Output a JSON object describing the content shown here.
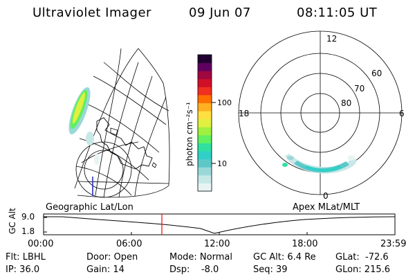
{
  "header": {
    "instrument": "Ultraviolet Imager",
    "date": "09 Jun 07",
    "time": "08:11:05 UT"
  },
  "colorbar": {
    "unit_label": "photon cm⁻²s⁻¹",
    "ticks": [
      "100",
      "10"
    ],
    "scale": "log",
    "colors": [
      "#e8f4f4",
      "#c8e8e8",
      "#9ad8d8",
      "#5ec8c8",
      "#30d0c8",
      "#30e0a0",
      "#60f060",
      "#a0f040",
      "#e0f040",
      "#ffe040",
      "#ffb020",
      "#ff7000",
      "#f03020",
      "#d01028",
      "#a00840",
      "#600060",
      "#200030"
    ]
  },
  "left_map": {
    "label": "Geographic Lat/Lon"
  },
  "polar_plot": {
    "label": "Apex MLat/MLT",
    "mlt_labels": [
      "12",
      "18",
      "6",
      "0"
    ],
    "lat_labels": [
      "60",
      "70",
      "80"
    ]
  },
  "timeline": {
    "y_label": "GC Alt",
    "y_ticks": [
      "9.0",
      "1.8"
    ],
    "x_ticks": [
      "00:00",
      "06:00",
      "12:00",
      "18:00",
      "23:59"
    ],
    "marker_time": "08:11",
    "marker_color": "#ff0000"
  },
  "status": {
    "filter": "Flt: LBHL",
    "ip": "IP: 36.0",
    "door": "Door: Open",
    "gain": "Gain: 14",
    "mode": "Mode: Normal",
    "dsp": "Dsp:    -8.0",
    "gc_alt": "GC Alt: 6.4 Re",
    "seq": "Seq: 39",
    "glat": "GLat:  -72.6",
    "glon": "GLon: 215.6"
  }
}
